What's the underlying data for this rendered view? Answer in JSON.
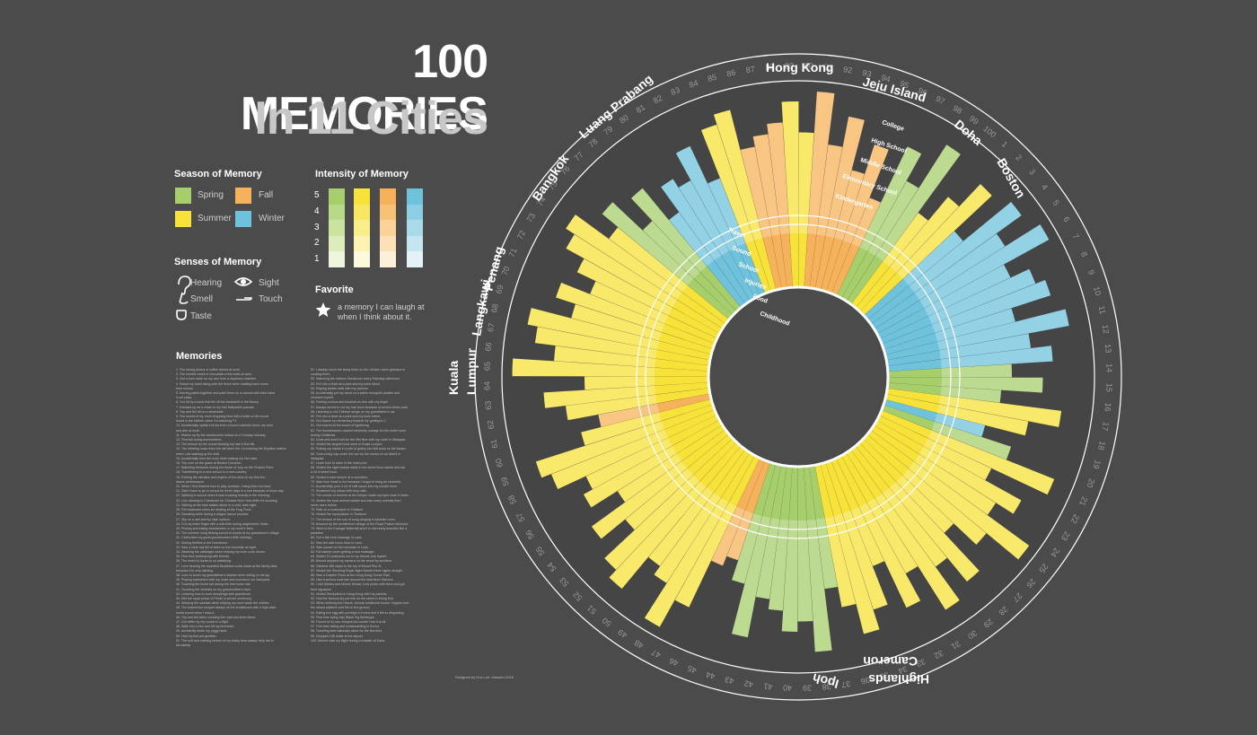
{
  "title": {
    "line1": "100 MEMORIES",
    "line2": "In 11 Cities"
  },
  "legend": {
    "season": {
      "heading": "Season of Memory",
      "items": [
        {
          "label": "Spring",
          "color": "#a6cf6c"
        },
        {
          "label": "Fall",
          "color": "#f6b25a"
        },
        {
          "label": "Summer",
          "color": "#f7e23a"
        },
        {
          "label": "Winter",
          "color": "#6fc2dc"
        }
      ]
    },
    "intensity": {
      "heading": "Intensity of Memory",
      "levels": [
        "5",
        "4",
        "3",
        "2",
        "1"
      ]
    },
    "senses": {
      "heading": "Senses of Memory",
      "items": [
        {
          "label": "Hearing",
          "icon": "ear-icon"
        },
        {
          "label": "Sight",
          "icon": "eye-icon"
        },
        {
          "label": "Smell",
          "icon": "nose-icon"
        },
        {
          "label": "Touch",
          "icon": "hand-icon"
        },
        {
          "label": "Taste",
          "icon": "mouth-icon"
        }
      ]
    },
    "favorite": {
      "heading": "Favorite",
      "text1": "a memory I can laugh at",
      "text2": "when I think about it.",
      "icon": "star-icon"
    }
  },
  "memories_heading": "Memories",
  "memories_left": [
    "1. The strong aroma of coffee aroma at work.",
    "2. The humble smell of chocolate in the trash at work.",
    "3. Got a burn mark on my arm from a espresso machine.",
    "4. Swept my hand along with the fence when walking back home",
    "   from school.",
    "5. Moving paints together and paint them on a canvas with bare hand",
    "   in art class.",
    "6. Got hit by a book that fell off the bookshelf in the library.",
    "7. Dressed up as a clown in my first Halloween parade.",
    "8. Trip and fell off on a sheetslide.",
    "9. The sound of my mom chopping food with a knife on the wood",
    "   board in the kitchen when I'm watching TV.",
    "10. Accidentally splash hot tea from a boom machine down my neck",
    "    and arm at work.",
    "11. Woken up by the construction noises on a Sunday morning.",
    "12. First fall during summertime.",
    "13. The breeze by the ocean blowing my hair in the fall.",
    "14. The irritating noise from the rail when the I is entering the Boylston station",
    "    when I am walking up the stair.",
    "15. Accidentally burn the oven when baking my first cake.",
    "16. Trip over on the grass at Boston Common.",
    "17. Watching fireworks during the fourth of July on the Charles River.",
    "18. Transferring to a new school in a new country.",
    "19. Feeling the vibration and rhythm of the drum in my first lion",
    "    dance performance.",
    "20. When I first learned how to play cymbals, I bang them too loud.",
    "21. Didn't have to go to school for three days in a row because of snow day.",
    "22. Walking to school when it was snowing heavily in the morning.",
    "23. Lion dancing in Chinatown for Chinese New Year while it's snowing.",
    "24. Waiting at the train station alone in a cold, dark night.",
    "25. Fell backward when ice skating at the Frog Pond.",
    "26. Sweating while during a dragon dance practice.",
    "27. Slip on a wet and icy stair outdoor.",
    "28. Cut my index finger with a silk knife during anglerment. finals.",
    "29. Picking and eating strawberries in my uncle's farm.",
    "30. The summer song flicking sound of cicada at my grandmom's village.",
    "31. Celebrated my great grandmother's 80th birthday.",
    "32. Seeing fireflies in the hometown.",
    "33. Saw a clear sky full of stars on the mountain at night.",
    "34. Washing the cabbages when helping my mom cook dinner.",
    "35. First time barbequing with friends.",
    "36. The smell of durian is so satisfying.",
    "37. Love hearing the repeated Buddhism sutra music at the family altar",
    "    because it is very calming.",
    "38. Love to touch my grandfather's stubble when sitting on his lap.",
    "39. Playing badminton with my uncle and cousins in our backyard.",
    "40. Touching the horse tail during the first horse ride.",
    "41. Touching the wrinkles on my grandmother's face.",
    "42. Learning how to cook dumplings with grandmom.",
    "43. Met the royal prince of Perak in school ceremony.",
    "44. Wearing the sandals when helping my mom wash the clothes.",
    "45. The badminton racquet always hit the shuttlecock with a high pitch",
    "    metal sound when I miss it.",
    "46. Trip and fall when crossing the road and knee bleed.",
    "47. Got bitten by my cousin in a fight.",
    "48. Walk into a tree and hit my forehead.",
    "49. Accidently broke my piggy bank.",
    "50. Had my first pet goldfish.",
    "51. The soft and calming texture of my teddy bear always help me to",
    "    fall asleep."
  ],
  "memories_right": [
    "51. I always touch the study them on the chicken when grandpa is",
    "    cooking them.",
    "52. Watching the cartoon Doraemon every Saturday afternoon.",
    "53. Fell into a drain at a park and my knee bleed.",
    "54. Playing barbie dolls with my cousins.",
    "55. Accidentally put my hand on a  active mosquito swatter and",
    "    shocked myself.",
    "56. Feeling curious and touched an iron with my finger.",
    "57. Always forced to cut my hair short because of school dress code.",
    "58. Listening to old Chinese songs on my grandfather's car.",
    "59. Fell into a drain at a park and my knee bleed.",
    "60. Got Spank by elementary teacher for getting in C.",
    "61. Got scared at the sound of lightening.",
    "62. The thunderstorm caused electricity outrage for the entire town",
    "    during Christmas.",
    "63. Drink and smell fruit for the first time with my uncle in Malaysia.",
    "64. Visited the largest book store in Kuala Lumpur.",
    "65. Putting my hands in a pile of grainy hot drift sand on the beach.",
    "66. Took a long nap under the sun by the ocean on an island in",
    "    Malaysia.",
    "67. Learn how to swim in the hotel pool.",
    "68. Visited the night bazaar stalls in the street food market and ate",
    "    a lot of street food.",
    "69. Visited a cave temple at a mountain.",
    "70. Was from head to toe because I forgot to bring an umbrella.",
    "71. Accidentally pour a lot of chili sauce into my noodle bowl.",
    "72. Scratched my elbow with long nails.",
    "73. The smoke of incense at the temple made my eyes soak in tears.",
    "74. Visited the local animal market and saw many animals that I",
    "    never seen before.",
    "75. Ride on a motorcycle in Thailand.",
    "76. Visited the royal palace in Thailand.",
    "77. The texture of the sun of sung clinging in karaoke room.",
    "78. Amazed by the architecture design of the Royal Palace Museum.",
    "79. Went to the Kuangsi Waterfall and it is extremely beautiful like a",
    "    paradise.",
    "80. Got a fish foot massage in Laos.",
    "81. Saw the wild moon bear in Laos.",
    "82. Saw sunset on the mountain in Laos.",
    "83. Fall asleep when getting a foot massage.",
    "84. Mailed 10 postcards out to my friends and myself.",
    "85. Almost dropped my camera on the street by accident.",
    "86. Climbed 366 steps to the top of Mount Phu Si.",
    "87. Visited the Stunning Royal Night Market three nights straight.",
    "88. Saw a Dolphin Show at the Hong Kong Ocean Park.",
    "89. Had a serious boat ride around the Aberdeen Harbour.",
    "90. I met Mickey and Minnie Mouse, took photo with them and got",
    "    their signature.",
    "91. Visited Disneyland in Hong Kong with my parents.",
    "92. Had the famous dry pot rice on the street in Mong Kok.",
    "93. When entering the Hanok, Korean traditional house I tripped over",
    "    the raised platform and fell on the ground.",
    "94. Eating rice egg with porridge in Korea and it felt so disgusting.",
    "95. First time trying Jeju Black Pig Barbeque.",
    "96. Forced to try raw octopus but couldn't eat it at all.",
    "97. First time skiing and snowboarding in Korea.",
    "98. Traveling internationally alone for the first time.",
    "99. Dropped 10$ dollar at the airport.",
    "100. Almost miss my flight during a transfer at Doha."
  ],
  "credit": "Designed by Eva Loh, MassArt 2016",
  "wheel": {
    "rings": [
      "Travel",
      "Sound",
      "School",
      "Injuries",
      "Food",
      "Childhood"
    ],
    "schools": [
      "College",
      "High School",
      "Middle School",
      "Elementary School",
      "Kindergarten"
    ],
    "cities": [
      {
        "name": "Hong Kong"
      },
      {
        "name": "Jeju Island"
      },
      {
        "name": "Doha"
      },
      {
        "name": "Boston"
      },
      {
        "name": "Cameron"
      },
      {
        "name": "Highlands"
      },
      {
        "name": "Ipoh"
      },
      {
        "name": "Kuala"
      },
      {
        "name": "Lumpur"
      },
      {
        "name": "Langkawi"
      },
      {
        "name": "Penang"
      },
      {
        "name": "Bangkok"
      },
      {
        "name": "Luang Prabang"
      }
    ],
    "season_colors": {
      "spring": "#a6cf6c",
      "summer": "#f7e23a",
      "fall": "#f6b25a",
      "winter": "#6fc2dc"
    }
  }
}
